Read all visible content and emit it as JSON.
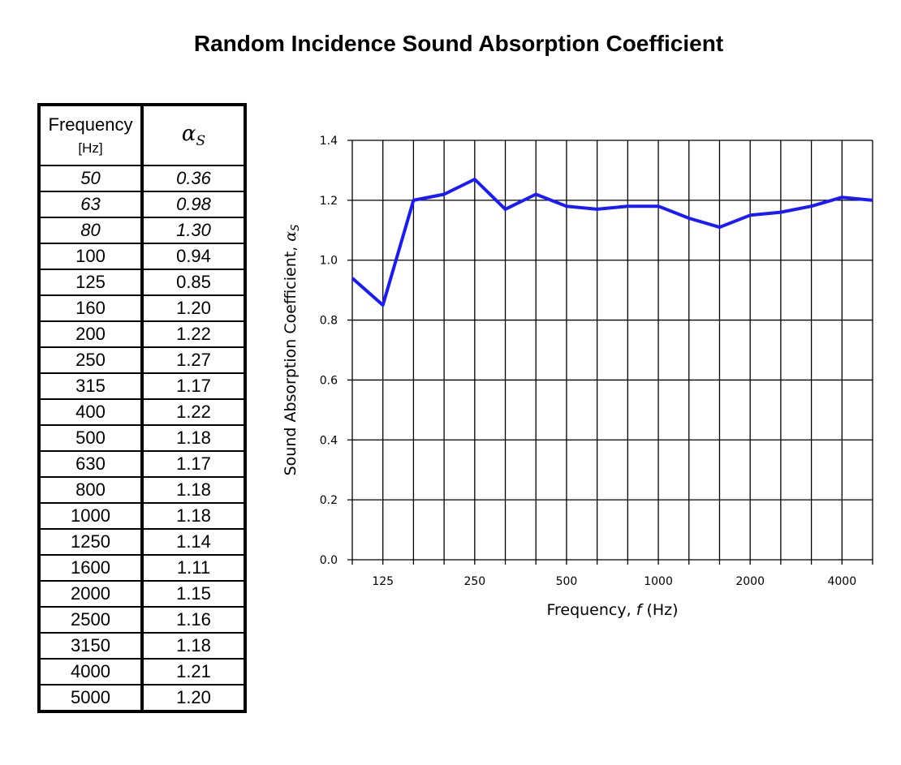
{
  "page": {
    "title": "Random Incidence Sound Absorption Coefficient"
  },
  "table": {
    "col_frequency": "Frequency",
    "col_frequency_unit": "[Hz]",
    "col_alpha_symbol": "α",
    "col_alpha_sub": "S",
    "rows": [
      {
        "f": "50",
        "a": "0.36",
        "italic": true
      },
      {
        "f": "63",
        "a": "0.98",
        "italic": true
      },
      {
        "f": "80",
        "a": "1.30",
        "italic": true
      },
      {
        "f": "100",
        "a": "0.94"
      },
      {
        "f": "125",
        "a": "0.85"
      },
      {
        "f": "160",
        "a": "1.20"
      },
      {
        "f": "200",
        "a": "1.22"
      },
      {
        "f": "250",
        "a": "1.27"
      },
      {
        "f": "315",
        "a": "1.17"
      },
      {
        "f": "400",
        "a": "1.22"
      },
      {
        "f": "500",
        "a": "1.18"
      },
      {
        "f": "630",
        "a": "1.17"
      },
      {
        "f": "800",
        "a": "1.18"
      },
      {
        "f": "1000",
        "a": "1.18"
      },
      {
        "f": "1250",
        "a": "1.14"
      },
      {
        "f": "1600",
        "a": "1.11"
      },
      {
        "f": "2000",
        "a": "1.15"
      },
      {
        "f": "2500",
        "a": "1.16"
      },
      {
        "f": "3150",
        "a": "1.18"
      },
      {
        "f": "4000",
        "a": "1.21"
      },
      {
        "f": "5000",
        "a": "1.20"
      }
    ]
  },
  "chart_data": {
    "type": "line",
    "xlabel": "Frequency, f (Hz)",
    "ylabel": "Sound Absorption Coefficient, α",
    "ylabel_sub": "S",
    "x": [
      "100",
      "125",
      "160",
      "200",
      "250",
      "315",
      "400",
      "500",
      "630",
      "800",
      "1000",
      "1250",
      "1600",
      "2000",
      "2500",
      "3150",
      "4000",
      "5000"
    ],
    "x_tick_labels": [
      "",
      "125",
      "",
      "",
      "250",
      "",
      "",
      "500",
      "",
      "",
      "1000",
      "",
      "",
      "2000",
      "",
      "",
      "4000",
      ""
    ],
    "series": [
      {
        "values": [
          0.94,
          0.85,
          1.2,
          1.22,
          1.27,
          1.17,
          1.22,
          1.18,
          1.17,
          1.18,
          1.18,
          1.14,
          1.11,
          1.15,
          1.16,
          1.18,
          1.21,
          1.2
        ],
        "color": "#1a1aff"
      }
    ],
    "ylim": [
      0,
      1.4
    ],
    "y_ticks": [
      "0.0",
      "0.2",
      "0.4",
      "0.6",
      "0.8",
      "1.0",
      "1.2",
      "1.4"
    ],
    "grid": true,
    "legend": "none"
  }
}
